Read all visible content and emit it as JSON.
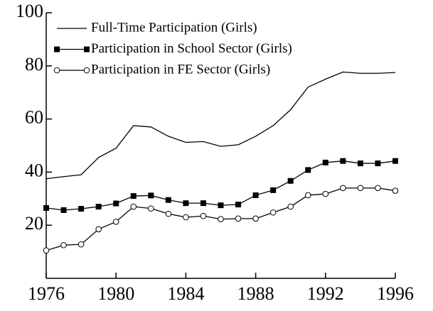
{
  "chart_data": {
    "type": "line",
    "x": [
      1976,
      1977,
      1978,
      1979,
      1980,
      1981,
      1982,
      1983,
      1984,
      1985,
      1986,
      1987,
      1988,
      1989,
      1990,
      1991,
      1992,
      1993,
      1994,
      1995,
      1996
    ],
    "series": [
      {
        "name": "Full-Time Participation (Girls)",
        "color": "#000000",
        "marker": "none",
        "values": [
          37.5,
          38.3,
          39,
          45.5,
          49,
          57.5,
          57,
          53.5,
          51.2,
          51.5,
          49.7,
          50.3,
          53.5,
          57.5,
          63.5,
          72,
          75,
          77.7,
          77.2,
          77.2,
          77.5
        ]
      },
      {
        "name": "Participation in School Sector (Girls)",
        "color": "#000000",
        "marker": "square",
        "values": [
          26.5,
          25.7,
          26.2,
          27,
          28.2,
          31,
          31.2,
          29.5,
          28.3,
          28.3,
          27.5,
          27.8,
          31.3,
          33.2,
          36.7,
          40.8,
          43.6,
          44.2,
          43.3,
          43.3,
          44.2
        ]
      },
      {
        "name": "Participation in FE Sector (Girls)",
        "color": "#000000",
        "marker": "circle",
        "values": [
          10.5,
          12.5,
          12.8,
          18.5,
          21.3,
          27,
          26.3,
          24.3,
          23,
          23.5,
          22.3,
          22.5,
          22.5,
          24.8,
          27,
          31.3,
          31.8,
          34,
          34,
          34,
          33
        ]
      }
    ],
    "xlim": [
      1976,
      1996
    ],
    "xticks": [
      1976,
      1980,
      1984,
      1988,
      1992,
      1996
    ],
    "ylim": [
      0,
      100
    ],
    "yticks": [
      20,
      40,
      60,
      80,
      100
    ],
    "legend": "top-left"
  }
}
